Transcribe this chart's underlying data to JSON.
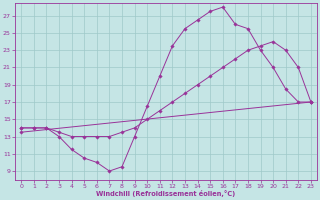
{
  "xlabel": "Windchill (Refroidissement éolien,°C)",
  "xlim_min": -0.5,
  "xlim_max": 23.5,
  "ylim_min": 8.0,
  "ylim_max": 28.5,
  "xticks": [
    0,
    1,
    2,
    3,
    4,
    5,
    6,
    7,
    8,
    9,
    10,
    11,
    12,
    13,
    14,
    15,
    16,
    17,
    18,
    19,
    20,
    21,
    22,
    23
  ],
  "yticks": [
    9,
    11,
    13,
    15,
    17,
    19,
    21,
    23,
    25,
    27
  ],
  "bg_color": "#c5e5e5",
  "grid_color": "#9fc9c9",
  "line_color": "#993399",
  "curve1_x": [
    0,
    1,
    2,
    3,
    4,
    5,
    6,
    7,
    8,
    9,
    10,
    11,
    12,
    13,
    14,
    15,
    16,
    17,
    18,
    19,
    20,
    21,
    22,
    23
  ],
  "curve1_y": [
    14,
    14,
    14,
    13,
    11.5,
    10.5,
    10,
    9,
    9.5,
    13,
    16.5,
    20,
    23.5,
    25.5,
    26.5,
    27.5,
    28,
    26,
    25.5,
    23,
    21,
    18.5,
    17,
    17
  ],
  "curve2_x": [
    0,
    1,
    2,
    3,
    4,
    5,
    6,
    7,
    8,
    9,
    10,
    11,
    12,
    13,
    14,
    15,
    16,
    17,
    18,
    19,
    20,
    21,
    22,
    23
  ],
  "curve2_y": [
    14,
    14,
    14,
    13.5,
    13,
    13,
    13,
    13,
    13.5,
    14,
    15,
    16,
    17,
    18,
    19,
    20,
    21,
    22,
    23,
    23.5,
    24,
    23,
    21,
    17
  ],
  "curve3_x": [
    0,
    23
  ],
  "curve3_y": [
    13.5,
    17.0
  ]
}
